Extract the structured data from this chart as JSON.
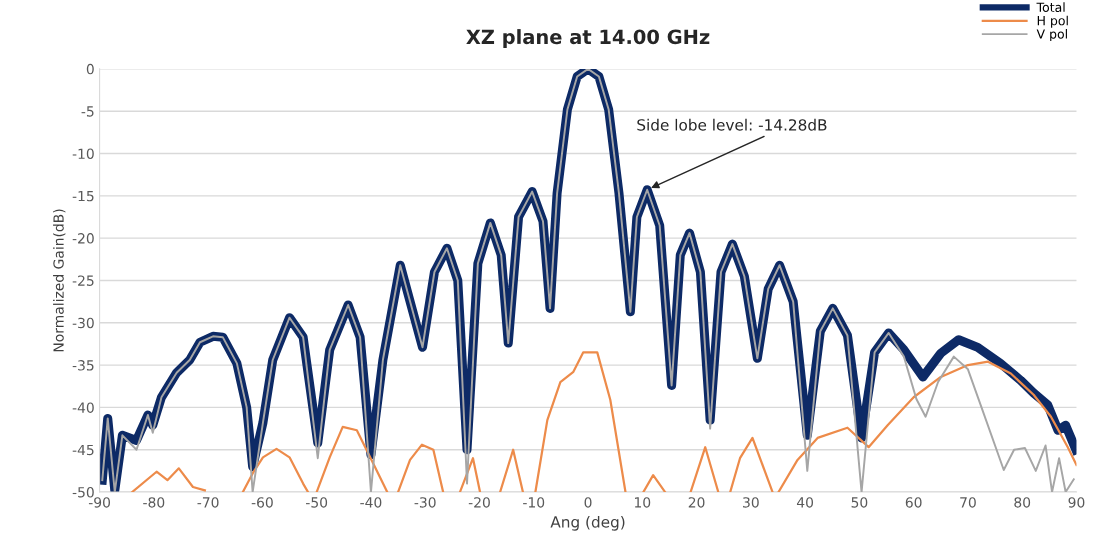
{
  "chart_data": {
    "type": "line",
    "title": "XZ plane at 14.00 GHz",
    "xlabel": "Ang (deg)",
    "ylabel": "Normalized Gain(dB)",
    "xlim": [
      -90,
      90
    ],
    "xticks": [
      -90,
      -80,
      -70,
      -60,
      -50,
      -40,
      -30,
      -20,
      -10,
      0,
      10,
      20,
      30,
      40,
      50,
      60,
      70,
      80,
      90
    ],
    "ylim": [
      -50,
      0
    ],
    "yticks": [
      -50,
      -45,
      -40,
      -35,
      -30,
      -25,
      -20,
      -15,
      -10,
      -5,
      0
    ],
    "grid": "y",
    "legend": "top right",
    "marker": "none",
    "line_style": "solid",
    "annotations": [
      {
        "text": "Side lobe level: -14.28dB",
        "x": 10.9,
        "y": -14.28
      }
    ],
    "series": [
      {
        "name": "Total",
        "color": "#0d2a66",
        "x": [
          -89.5,
          -88.5,
          -87.2,
          -85.8,
          -83.2,
          -81.1,
          -80.2,
          -78.6,
          -75.8,
          -73.4,
          -71.5,
          -69.1,
          -67.3,
          -64.7,
          -62.9,
          -61.8,
          -59.9,
          -58.1,
          -55,
          -52.5,
          -49.8,
          -47.6,
          -44.2,
          -42,
          -40,
          -37.8,
          -34.6,
          -30.5,
          -28.3,
          -26,
          -24,
          -22.3,
          -20.3,
          -18,
          -16,
          -14.7,
          -12.8,
          -10.3,
          -8.3,
          -7,
          -5.7,
          -3.8,
          -2,
          0,
          2,
          3.8,
          5.7,
          7.8,
          9,
          10.9,
          13.2,
          15.4,
          17,
          18.7,
          20.7,
          22.5,
          24.5,
          26.6,
          28.8,
          31.2,
          33.2,
          35.3,
          37.8,
          40.4,
          42.8,
          45.1,
          47.8,
          50.4,
          52.8,
          55.4,
          58.2,
          61.7,
          65,
          68.3,
          71.8,
          76,
          79.7,
          82.1,
          84.7,
          86.6,
          88,
          89.9
        ],
        "values": [
          -48.6,
          -41.3,
          -49.8,
          -43.3,
          -43.9,
          -40.9,
          -42.1,
          -38.8,
          -35.9,
          -34.4,
          -32.3,
          -31.6,
          -31.7,
          -34.8,
          -40,
          -47,
          -41.8,
          -34.4,
          -29.4,
          -31.7,
          -44.2,
          -33.2,
          -27.9,
          -31.7,
          -45.6,
          -34.4,
          -23.2,
          -32.9,
          -24,
          -21.2,
          -25,
          -45,
          -23,
          -18.2,
          -22,
          -32.4,
          -17.5,
          -14.5,
          -18,
          -28.3,
          -14.7,
          -4.8,
          -0.9,
          0,
          -0.9,
          -4.8,
          -14.7,
          -28.7,
          -17.5,
          -14.28,
          -18.5,
          -37.4,
          -22,
          -19.4,
          -24,
          -41.5,
          -24,
          -20.7,
          -24.5,
          -34.2,
          -26,
          -23.2,
          -27.5,
          -43.3,
          -31,
          -28.3,
          -31.5,
          -43.6,
          -33.5,
          -31.2,
          -33.2,
          -36.4,
          -33.6,
          -32,
          -32.9,
          -34.8,
          -36.8,
          -38.3,
          -39.7,
          -42.7,
          -42.1,
          -45
        ]
      },
      {
        "name": "H pol",
        "color": "#ed8b4a",
        "x": [
          -84,
          -79.5,
          -77.5,
          -75.4,
          -72.8,
          -70.6,
          -67,
          -63.6,
          -61.8,
          -59.9,
          -57.4,
          -55,
          -52.5,
          -51.6,
          -50.8,
          -50,
          -47.6,
          -45.2,
          -42.6,
          -39.6,
          -37,
          -36,
          -35,
          -32.8,
          -30.6,
          -28.5,
          -26.7,
          -25,
          -23.6,
          -21.2,
          -19.9,
          -18,
          -16.2,
          -13.8,
          -12,
          -11,
          -9.7,
          -7.5,
          -5.1,
          -2.7,
          -0.9,
          1.7,
          4.1,
          6.9,
          8.5,
          10.2,
          12,
          14.2,
          16.5,
          18.9,
          21.6,
          24,
          25,
          26.2,
          28,
          30.3,
          34,
          34.5,
          35.1,
          38.6,
          42.3,
          47.8,
          51.7,
          55.2,
          60,
          65,
          70,
          73.7,
          77.9,
          82.1,
          85.3,
          88.4,
          90
        ],
        "values": [
          -50,
          -47.6,
          -48.6,
          -47.2,
          -49.4,
          -49.8,
          null,
          -50,
          -47.8,
          -45.9,
          -44.9,
          -45.9,
          -49,
          -50,
          null,
          -50,
          -45.9,
          -42.3,
          -42.7,
          -46.6,
          -50,
          null,
          -50,
          -46.2,
          -44.4,
          -45,
          -50,
          null,
          -50,
          -46,
          -50,
          null,
          -50,
          -45,
          -50,
          null,
          -50,
          -41.5,
          -37,
          -35.8,
          -33.5,
          -33.5,
          -39.1,
          -50,
          null,
          -50,
          -48,
          -50,
          null,
          -50,
          -44.7,
          -50,
          null,
          -50,
          -46,
          -43.6,
          -50,
          null,
          -50,
          -46.2,
          -43.6,
          -42.4,
          -44.7,
          -42.1,
          -38.8,
          -36.4,
          -35,
          -34.6,
          -36,
          -38.5,
          -41.1,
          -44.7,
          -46.8
        ]
      },
      {
        "name": "V pol",
        "color": "#a6a6a6",
        "x": [
          -89.5,
          -88.5,
          -87.2,
          -85.8,
          -83.2,
          -81.1,
          -80.2,
          -78.6,
          -75.8,
          -73.4,
          -71.5,
          -69.1,
          -67.3,
          -64.7,
          -62.9,
          -61.8,
          -59.9,
          -58.1,
          -55,
          -52.5,
          -49.8,
          -47.6,
          -44.2,
          -42,
          -40,
          -37.8,
          -34.6,
          -30.5,
          -28.3,
          -26,
          -24,
          -22.3,
          -20.3,
          -18,
          -16,
          -14.7,
          -12.8,
          -10.3,
          -8.3,
          -7,
          -5.7,
          -3.8,
          -2,
          0,
          2,
          3.8,
          5.7,
          7.8,
          9,
          10.9,
          13.2,
          15.4,
          17,
          18.7,
          20.7,
          22.5,
          24.5,
          26.6,
          28.8,
          31.2,
          33.2,
          35.3,
          37.8,
          40.4,
          42.8,
          45.1,
          47.8,
          50.4,
          52.8,
          55.4,
          58.2,
          60.5,
          62.2,
          64.5,
          67.4,
          70,
          72.5,
          76.6,
          78.5,
          80.5,
          82.5,
          84.3,
          85.5,
          86.8,
          88,
          89.5
        ],
        "values": [
          -48.6,
          -41.3,
          -50,
          -43.3,
          -45,
          -40.9,
          -43,
          -38.8,
          -35.9,
          -34.4,
          -32.3,
          -31.6,
          -31.7,
          -34.8,
          -40,
          -50,
          -41.8,
          -34.4,
          -29.4,
          -31.7,
          -46,
          -33.2,
          -27.9,
          -31.7,
          -50,
          -34.4,
          -23.2,
          -32.9,
          -24,
          -21.2,
          -25,
          -49,
          -23,
          -18.2,
          -22,
          -32.4,
          -17.5,
          -14.5,
          -18,
          -28.3,
          -14.7,
          -4.8,
          -0.9,
          0,
          -0.9,
          -4.8,
          -14.7,
          -28.7,
          -17.5,
          -14.28,
          -18.5,
          -37.4,
          -22,
          -19.4,
          -24,
          -42.5,
          -24,
          -20.7,
          -24.5,
          -34.2,
          -26,
          -23.2,
          -27.5,
          -47.5,
          -31,
          -28.3,
          -31.5,
          -50,
          -33.5,
          -31.2,
          -34,
          -39,
          -41.1,
          -37,
          -34,
          -35.5,
          -40,
          -47.4,
          -45,
          -44.8,
          -47.5,
          -44.5,
          -50,
          -46,
          -50,
          -48.5
        ]
      }
    ]
  }
}
